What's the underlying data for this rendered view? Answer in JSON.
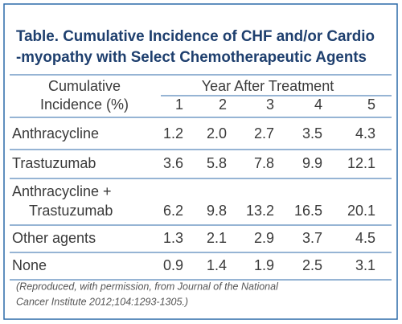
{
  "title": {
    "lines": [
      "Table. Cumulative Incidence of CHF and/or Cardio",
      "-myopathy with Select Chemotherapeutic Agents"
    ]
  },
  "table": {
    "row_header": {
      "lines": [
        "Cumulative",
        "Incidence (%)"
      ]
    },
    "column_group": "Year After Treatment",
    "columns": [
      "1",
      "2",
      "3",
      "4",
      "5"
    ],
    "rows": [
      {
        "label": [
          "Anthracycline"
        ],
        "values": [
          "1.2",
          "2.0",
          "2.7",
          "3.5",
          "4.3"
        ]
      },
      {
        "label": [
          "Trastuzumab"
        ],
        "values": [
          "3.6",
          "5.8",
          "7.8",
          "9.9",
          "12.1"
        ]
      },
      {
        "label": [
          "Anthracycline +",
          "Trastuzumab"
        ],
        "values": [
          "6.2",
          "9.8",
          "13.2",
          "16.5",
          "20.1"
        ]
      },
      {
        "label": [
          "Other agents"
        ],
        "values": [
          "1.3",
          "2.1",
          "2.9",
          "3.7",
          "4.5"
        ]
      },
      {
        "label": [
          "None"
        ],
        "values": [
          "0.9",
          "1.4",
          "1.9",
          "2.5",
          "3.1"
        ]
      }
    ]
  },
  "footnote": {
    "lines": [
      "(Reproduced, with permission, from Journal of the National",
      "Cancer Institute 2012;104:1293-1305.)"
    ]
  }
}
